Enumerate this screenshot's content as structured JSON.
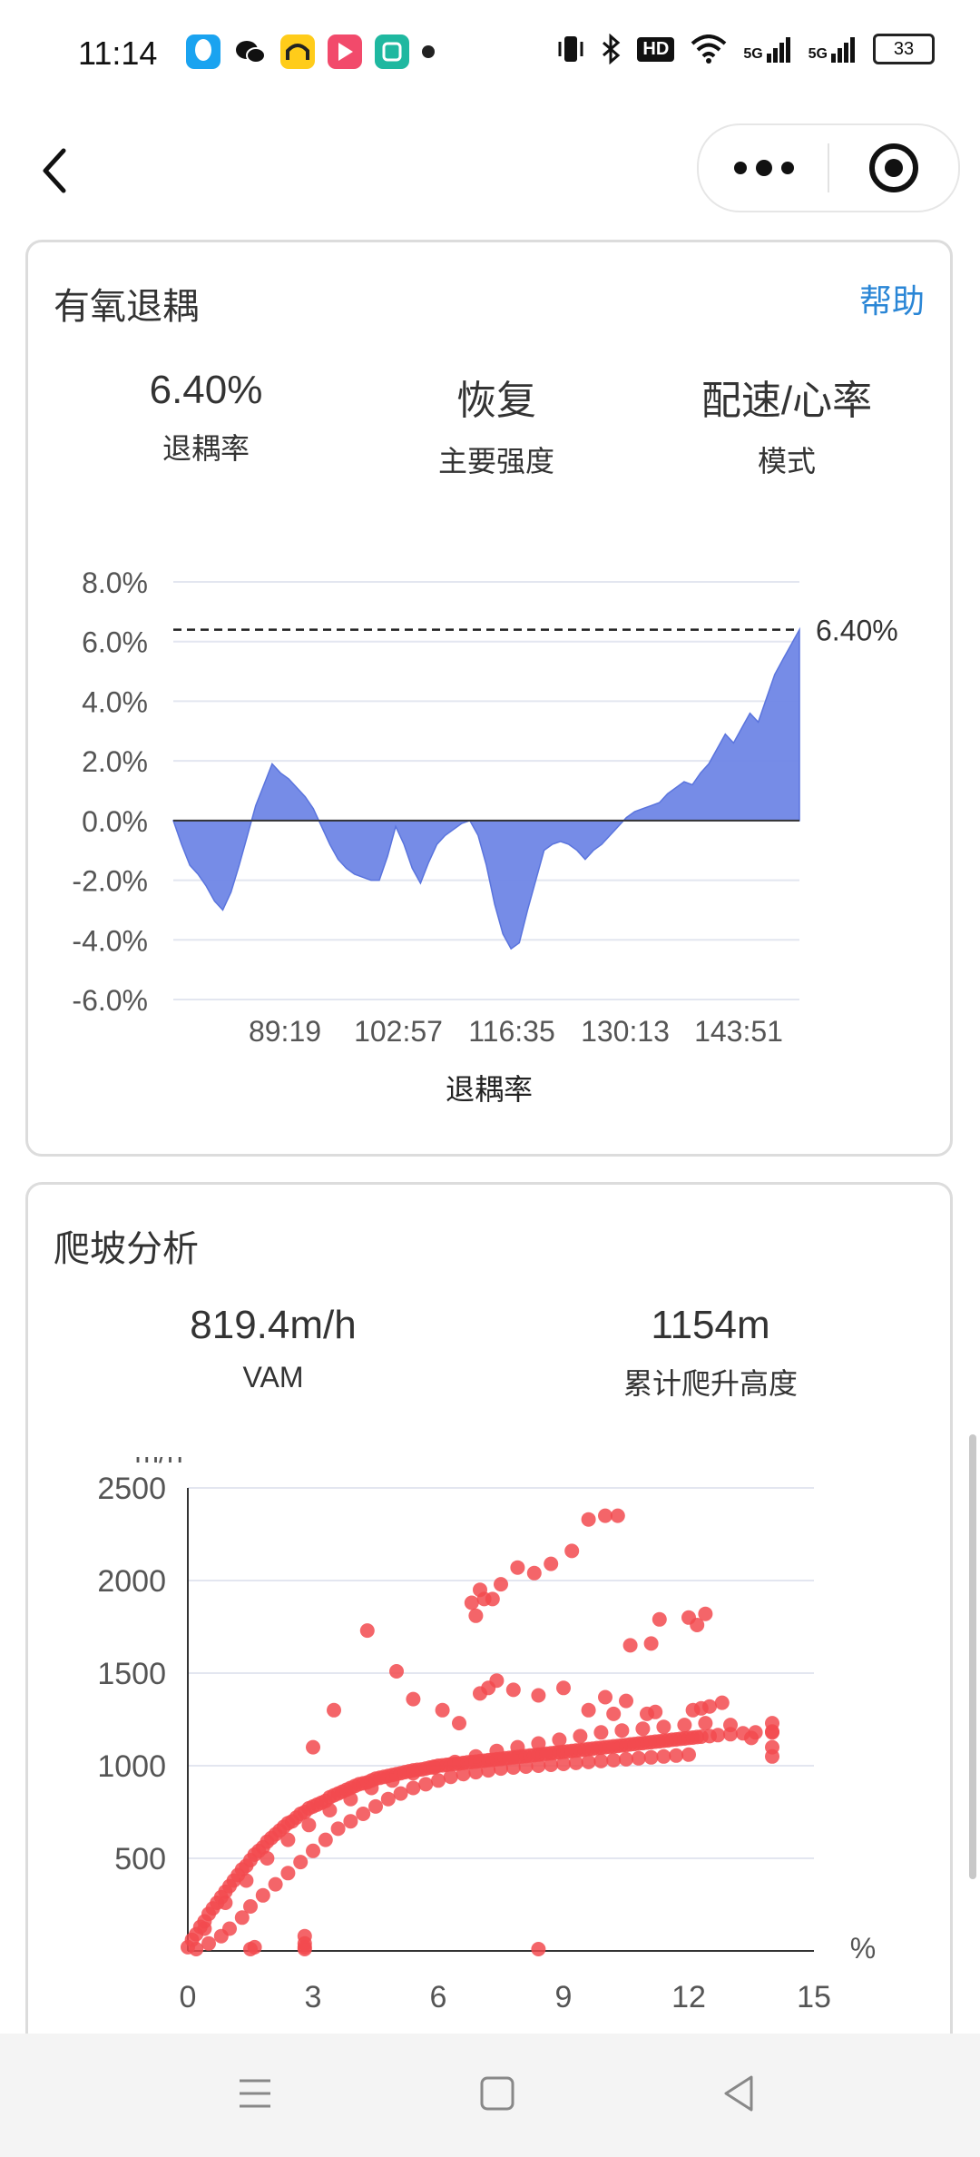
{
  "status_bar": {
    "time": "11:14",
    "battery": "33",
    "network_labels": [
      "HD",
      "5G",
      "5G"
    ]
  },
  "nav": {
    "back_icon": "chevron-left-icon",
    "more_icon": "more-dots-icon",
    "close_icon": "target-circle-icon"
  },
  "aerobic_card": {
    "title": "有氧退耦",
    "help": "帮助",
    "metrics": [
      {
        "value": "6.40%",
        "label": "退耦率"
      },
      {
        "value": "恢复",
        "label": "主要强度"
      },
      {
        "value": "配速/心率",
        "label": "模式"
      }
    ]
  },
  "climb_card": {
    "title": "爬坡分析",
    "metrics": [
      {
        "value": "819.4m/h",
        "label": "VAM"
      },
      {
        "value": "1154m",
        "label": "累计爬升高度"
      }
    ]
  },
  "chart_data": [
    {
      "type": "area",
      "title": "",
      "xlabel": "退耦率",
      "ylabel": "",
      "ylim": [
        -6.0,
        8.0
      ],
      "y_ticks": [
        "8.0%",
        "6.0%",
        "4.0%",
        "2.0%",
        "0.0%",
        "-2.0%",
        "-4.0%",
        "-6.0%"
      ],
      "x_ticks": [
        "89:19",
        "102:57",
        "116:35",
        "130:13",
        "143:51"
      ],
      "reference_line": {
        "value": 6.4,
        "label": "6.40%"
      },
      "series": [
        {
          "color": "#6f86e6",
          "values": [
            0.0,
            -0.8,
            -1.5,
            -1.8,
            -2.2,
            -2.7,
            -3.0,
            -2.4,
            -1.5,
            -0.5,
            0.5,
            1.2,
            1.9,
            1.6,
            1.4,
            1.1,
            0.8,
            0.4,
            -0.2,
            -0.8,
            -1.3,
            -1.6,
            -1.8,
            -1.9,
            -2.0,
            -2.0,
            -1.2,
            -0.2,
            -0.8,
            -1.6,
            -2.1,
            -1.4,
            -0.8,
            -0.5,
            -0.3,
            -0.1,
            0.0,
            -0.5,
            -1.5,
            -2.8,
            -3.8,
            -4.3,
            -4.1,
            -3.0,
            -2.0,
            -1.0,
            -0.8,
            -0.7,
            -0.8,
            -1.0,
            -1.3,
            -1.0,
            -0.8,
            -0.5,
            -0.2,
            0.1,
            0.3,
            0.4,
            0.5,
            0.6,
            0.9,
            1.1,
            1.3,
            1.2,
            1.6,
            1.9,
            2.4,
            2.9,
            2.6,
            3.1,
            3.6,
            3.3,
            4.1,
            4.9,
            5.4,
            5.9,
            6.4
          ]
        }
      ]
    },
    {
      "type": "scatter",
      "title": "",
      "xlabel": "%",
      "ylabel": "m/h",
      "xlim": [
        0,
        15
      ],
      "ylim": [
        0,
        2500
      ],
      "x_ticks": [
        "0",
        "3",
        "6",
        "9",
        "12",
        "15"
      ],
      "y_ticks": [
        "2500",
        "2000",
        "1500",
        "1000",
        "500"
      ],
      "color": "#f24a4f",
      "points_x": [
        0.0,
        0.1,
        0.2,
        0.3,
        0.4,
        0.5,
        0.6,
        0.7,
        0.8,
        0.9,
        1.0,
        1.1,
        1.2,
        1.3,
        1.4,
        1.5,
        1.6,
        1.7,
        1.8,
        1.9,
        2.0,
        2.1,
        2.2,
        2.3,
        2.4,
        2.5,
        2.6,
        2.7,
        2.8,
        2.9,
        3.0,
        3.1,
        3.2,
        3.3,
        3.4,
        3.5,
        3.6,
        3.7,
        3.8,
        3.9,
        4.0,
        4.1,
        4.2,
        4.3,
        4.4,
        4.5,
        4.6,
        4.7,
        4.8,
        4.9,
        5.0,
        5.1,
        5.2,
        5.3,
        5.4,
        5.5,
        5.6,
        5.7,
        5.8,
        5.9,
        6.0,
        6.1,
        6.2,
        6.3,
        6.4,
        6.5,
        6.6,
        6.7,
        6.8,
        6.9,
        7.0,
        7.1,
        7.2,
        7.3,
        7.4,
        7.5,
        7.6,
        7.7,
        7.8,
        7.9,
        8.0,
        8.1,
        8.2,
        8.3,
        8.4,
        8.5,
        8.6,
        8.7,
        8.8,
        8.9,
        9.0,
        9.1,
        9.2,
        9.3,
        9.4,
        9.5,
        9.6,
        9.7,
        9.8,
        9.9,
        10.0,
        10.1,
        10.2,
        10.3,
        10.4,
        10.5,
        10.6,
        10.7,
        10.8,
        10.9,
        11.0,
        11.1,
        11.2,
        11.3,
        11.4,
        11.5,
        11.6,
        11.7,
        11.8,
        11.9,
        12.0,
        12.1,
        12.2,
        12.3,
        12.5,
        12.7,
        13.0,
        13.3,
        13.6,
        14.0,
        0.2,
        0.5,
        0.8,
        1.0,
        1.3,
        1.5,
        1.8,
        2.1,
        2.4,
        2.7,
        3.0,
        3.3,
        3.6,
        3.9,
        4.2,
        4.5,
        4.8,
        5.1,
        5.4,
        5.7,
        6.0,
        6.3,
        6.6,
        6.9,
        7.2,
        7.5,
        7.8,
        8.1,
        8.4,
        8.7,
        9.0,
        9.3,
        9.6,
        9.9,
        10.2,
        10.5,
        10.8,
        11.1,
        11.4,
        11.7,
        12.0,
        0.4,
        0.9,
        1.4,
        1.9,
        2.4,
        2.9,
        3.4,
        3.9,
        4.4,
        4.9,
        5.4,
        5.9,
        6.4,
        6.9,
        7.4,
        7.9,
        8.4,
        8.9,
        9.4,
        9.9,
        10.4,
        10.9,
        11.4,
        11.9,
        12.4,
        1.6,
        2.8,
        2.8,
        2.8,
        3.0,
        3.5,
        4.3,
        5.0,
        5.4,
        6.1,
        6.5,
        7.0,
        7.2,
        7.4,
        7.8,
        8.4,
        9.0,
        9.6,
        10.0,
        10.2,
        10.5,
        11.0,
        11.2,
        12.1,
        12.3,
        12.5,
        12.8,
        13.0,
        13.5,
        14.0,
        14.0,
        14.0,
        14.0,
        6.8,
        6.9,
        7.0,
        7.1,
        7.3,
        7.5,
        7.9,
        8.3,
        8.7,
        9.2,
        9.6,
        10.0,
        10.3,
        10.6,
        11.1,
        11.3,
        12.0,
        12.2,
        12.4,
        8.4,
        1.5,
        2.8
      ],
      "points_y": [
        20,
        60,
        90,
        130,
        160,
        200,
        230,
        260,
        290,
        320,
        350,
        380,
        410,
        440,
        460,
        490,
        520,
        540,
        560,
        590,
        610,
        630,
        650,
        670,
        690,
        700,
        720,
        740,
        750,
        770,
        780,
        790,
        800,
        810,
        830,
        840,
        850,
        860,
        870,
        880,
        890,
        900,
        905,
        910,
        920,
        930,
        935,
        940,
        945,
        950,
        955,
        960,
        965,
        970,
        975,
        978,
        980,
        985,
        990,
        995,
        1000,
        1002,
        1005,
        1008,
        1010,
        1012,
        1015,
        1018,
        1020,
        1022,
        1025,
        1027,
        1030,
        1032,
        1035,
        1037,
        1040,
        1042,
        1045,
        1047,
        1050,
        1052,
        1055,
        1057,
        1060,
        1062,
        1065,
        1067,
        1070,
        1072,
        1075,
        1077,
        1080,
        1082,
        1085,
        1087,
        1090,
        1092,
        1095,
        1097,
        1100,
        1102,
        1105,
        1107,
        1110,
        1112,
        1115,
        1117,
        1120,
        1122,
        1125,
        1127,
        1130,
        1132,
        1135,
        1137,
        1140,
        1142,
        1145,
        1147,
        1150,
        1152,
        1155,
        1157,
        1160,
        1165,
        1170,
        1175,
        1180,
        1185,
        10,
        40,
        80,
        120,
        180,
        240,
        300,
        360,
        420,
        480,
        540,
        600,
        660,
        700,
        740,
        780,
        820,
        850,
        880,
        900,
        920,
        940,
        955,
        965,
        975,
        985,
        990,
        995,
        1000,
        1005,
        1010,
        1015,
        1020,
        1025,
        1030,
        1035,
        1040,
        1045,
        1050,
        1055,
        1060,
        120,
        260,
        380,
        500,
        600,
        680,
        760,
        820,
        880,
        920,
        960,
        990,
        1020,
        1050,
        1080,
        1100,
        1120,
        1140,
        1160,
        1180,
        1190,
        1200,
        1210,
        1220,
        1230,
        20,
        10,
        40,
        80,
        1100,
        1300,
        1730,
        1510,
        1360,
        1300,
        1230,
        1390,
        1420,
        1460,
        1410,
        1380,
        1420,
        1300,
        1370,
        1280,
        1350,
        1280,
        1290,
        1300,
        1310,
        1320,
        1340,
        1220,
        1150,
        1050,
        1100,
        1180,
        1230,
        1880,
        1810,
        1950,
        1900,
        1900,
        1980,
        2070,
        2040,
        2090,
        2160,
        2330,
        2350,
        2350,
        1650,
        1660,
        1790,
        1800,
        1760,
        1820,
        10,
        10,
        20
      ]
    }
  ],
  "bottom_nav": {
    "menu_icon": "menu-lines-icon",
    "home_icon": "square-home-icon",
    "back_icon": "triangle-back-icon"
  }
}
